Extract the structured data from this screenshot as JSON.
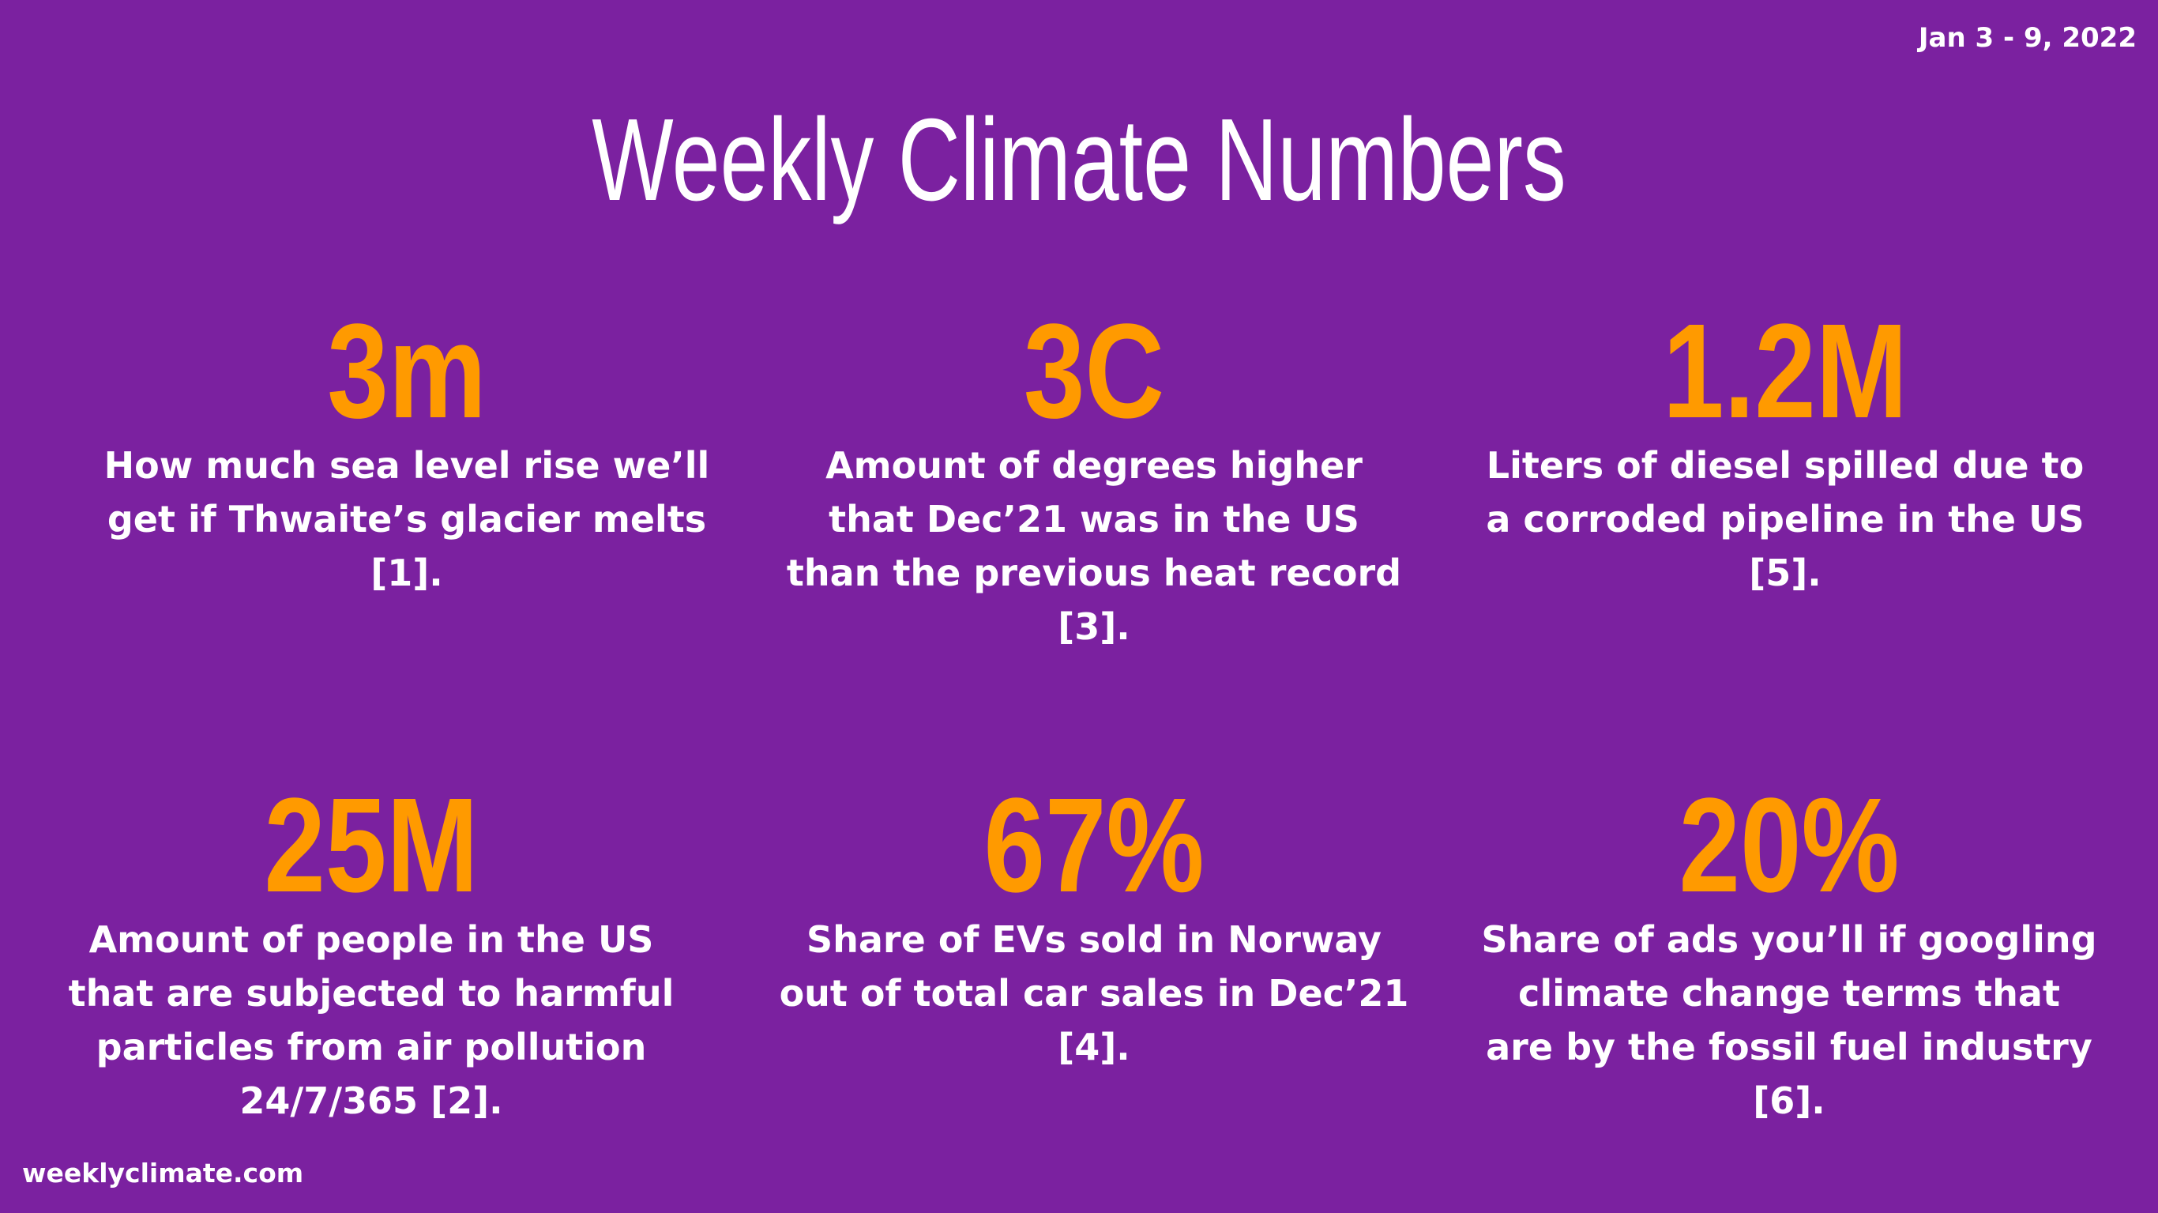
{
  "header": {
    "date_range": "Jan 3 - 9, 2022",
    "title": "Weekly Climate Numbers"
  },
  "stats": [
    {
      "number": "3m",
      "description": "How much sea level rise we’ll get if Thwaite’s glacier melts [1]."
    },
    {
      "number": "3C",
      "description": "Amount of degrees higher that Dec’21 was in the US than the previous heat record [3]."
    },
    {
      "number": "1.2M",
      "description": "Liters of diesel spilled due to a corroded pipeline in the US [5]."
    },
    {
      "number": "25M",
      "description": "Amount of people in the US that are subjected to harmful particles from air pollution 24/7/365 [2]."
    },
    {
      "number": "67%",
      "description": "Share of EVs sold in Norway out of total car sales in Dec’21 [4]."
    },
    {
      "number": "20%",
      "description": "Share of ads you’ll if googling climate change terms that are by the fossil fuel industry [6]."
    }
  ],
  "footer": {
    "site": "weeklyclimate.com"
  },
  "colors": {
    "background": "#7b21a0",
    "accent": "#ff9a00",
    "text": "#ffffff"
  }
}
